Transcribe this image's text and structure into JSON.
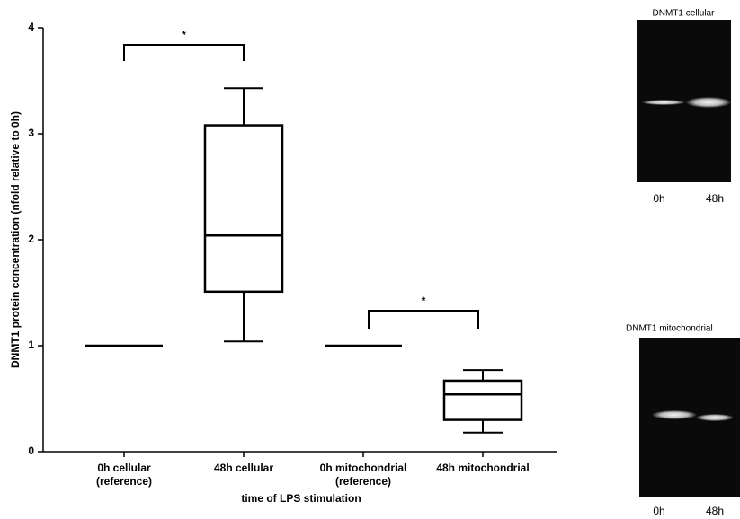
{
  "chart_data": {
    "type": "box",
    "y_label": "DNMT1 protein concentration (nfold relative to 0h)",
    "x_label": "time of LPS stimulation",
    "categories": [
      "0h cellular\n(reference)",
      "48h cellular",
      "0h mitochondrial\n(reference)",
      "48h mitochondrial"
    ],
    "boxes": [
      {
        "min": 1,
        "q1": 1,
        "median": 1,
        "q3": 1,
        "max": 1
      },
      {
        "min": 1.04,
        "q1": 1.51,
        "median": 2.04,
        "q3": 3.08,
        "max": 3.43
      },
      {
        "min": 1,
        "q1": 1,
        "median": 1,
        "q3": 1,
        "max": 1
      },
      {
        "min": 0.18,
        "q1": 0.3,
        "median": 0.54,
        "q3": 0.67,
        "max": 0.77
      }
    ],
    "color": "#000000",
    "ylim": [
      0,
      4
    ],
    "yticks": [
      0,
      1,
      2,
      3,
      4
    ],
    "annotations": [
      "*",
      "*"
    ]
  },
  "blots": [
    {
      "title": "DNMT1 cellular",
      "lanes": [
        "0h",
        "48h"
      ]
    },
    {
      "title": "DNMT1 mitochondrial",
      "lanes": [
        "0h",
        "48h"
      ]
    }
  ]
}
